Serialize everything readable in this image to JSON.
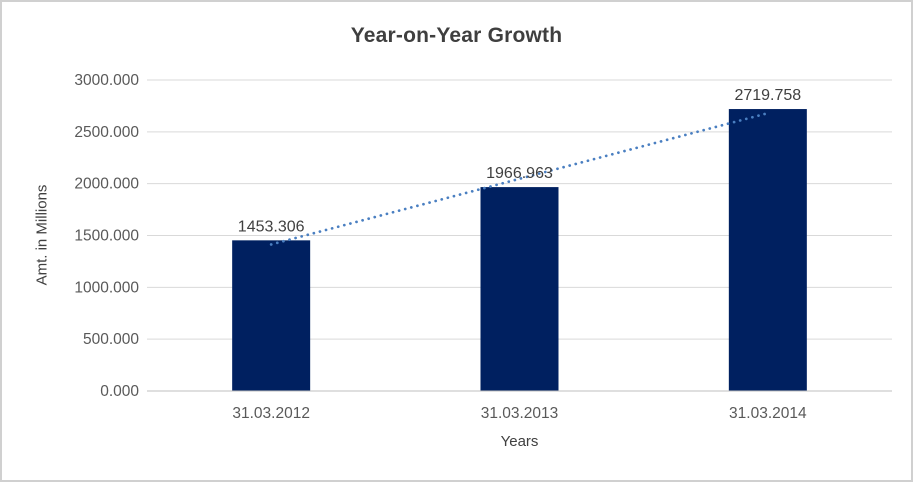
{
  "chart_data": {
    "type": "bar",
    "title": "Year-on-Year Growth",
    "xlabel": "Years",
    "ylabel": "Amt. in Millions",
    "categories": [
      "31.03.2012",
      "31.03.2013",
      "31.03.2014"
    ],
    "values": [
      1453.306,
      1966.963,
      2719.758
    ],
    "data_labels": [
      "1453.306",
      "1966.963",
      "2719.758"
    ],
    "yticks": [
      0,
      500,
      1000,
      1500,
      2000,
      2500,
      3000
    ],
    "ytick_labels": [
      "0.000",
      "500.000",
      "1000.000",
      "1500.000",
      "2000.000",
      "2500.000",
      "3000.000"
    ],
    "ylim": [
      0,
      3000
    ],
    "grid": true,
    "legend": "none",
    "trendline": {
      "type": "linear",
      "style": "dotted"
    },
    "colors": {
      "bar": "#002060",
      "trendline": "#4a7fc1",
      "gridline": "#d9d9d9",
      "axis_line": "#bfbfbf",
      "title_text": "#3f3f3f",
      "tick_text": "#595959",
      "label_text": "#404040",
      "border": "#d0d0d0",
      "background": "#ffffff"
    }
  }
}
